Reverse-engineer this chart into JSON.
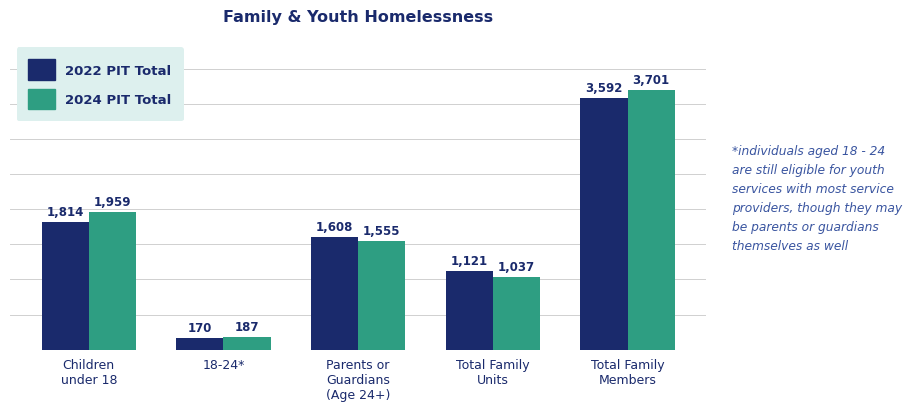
{
  "title": "Family & Youth Homelessness",
  "categories": [
    "Children\nunder 18",
    "18-24*",
    "Parents or\nGuardians\n(Age 24+)",
    "Total Family\nUnits",
    "Total Family\nMembers"
  ],
  "values_2022": [
    1814,
    170,
    1608,
    1121,
    3592
  ],
  "values_2024": [
    1959,
    187,
    1555,
    1037,
    3701
  ],
  "color_2022": "#1a2a6c",
  "color_2024": "#2e9e82",
  "legend_label_2022": "2022 PIT Total",
  "legend_label_2024": "2024 PIT Total",
  "legend_bg": "#ddf0ee",
  "bar_width": 0.35,
  "ylim": [
    0,
    4400
  ],
  "annotation_text": "*individuals aged 18 - 24\nare still eligible for youth\nservices with most service\nproviders, though they may\nbe parents or guardians\nthemselves as well",
  "title_color": "#1a2a6c",
  "label_color": "#1a2a6c",
  "annotation_color": "#3a55a0",
  "grid_color": "#d0d0d0",
  "background_color": "#ffffff"
}
